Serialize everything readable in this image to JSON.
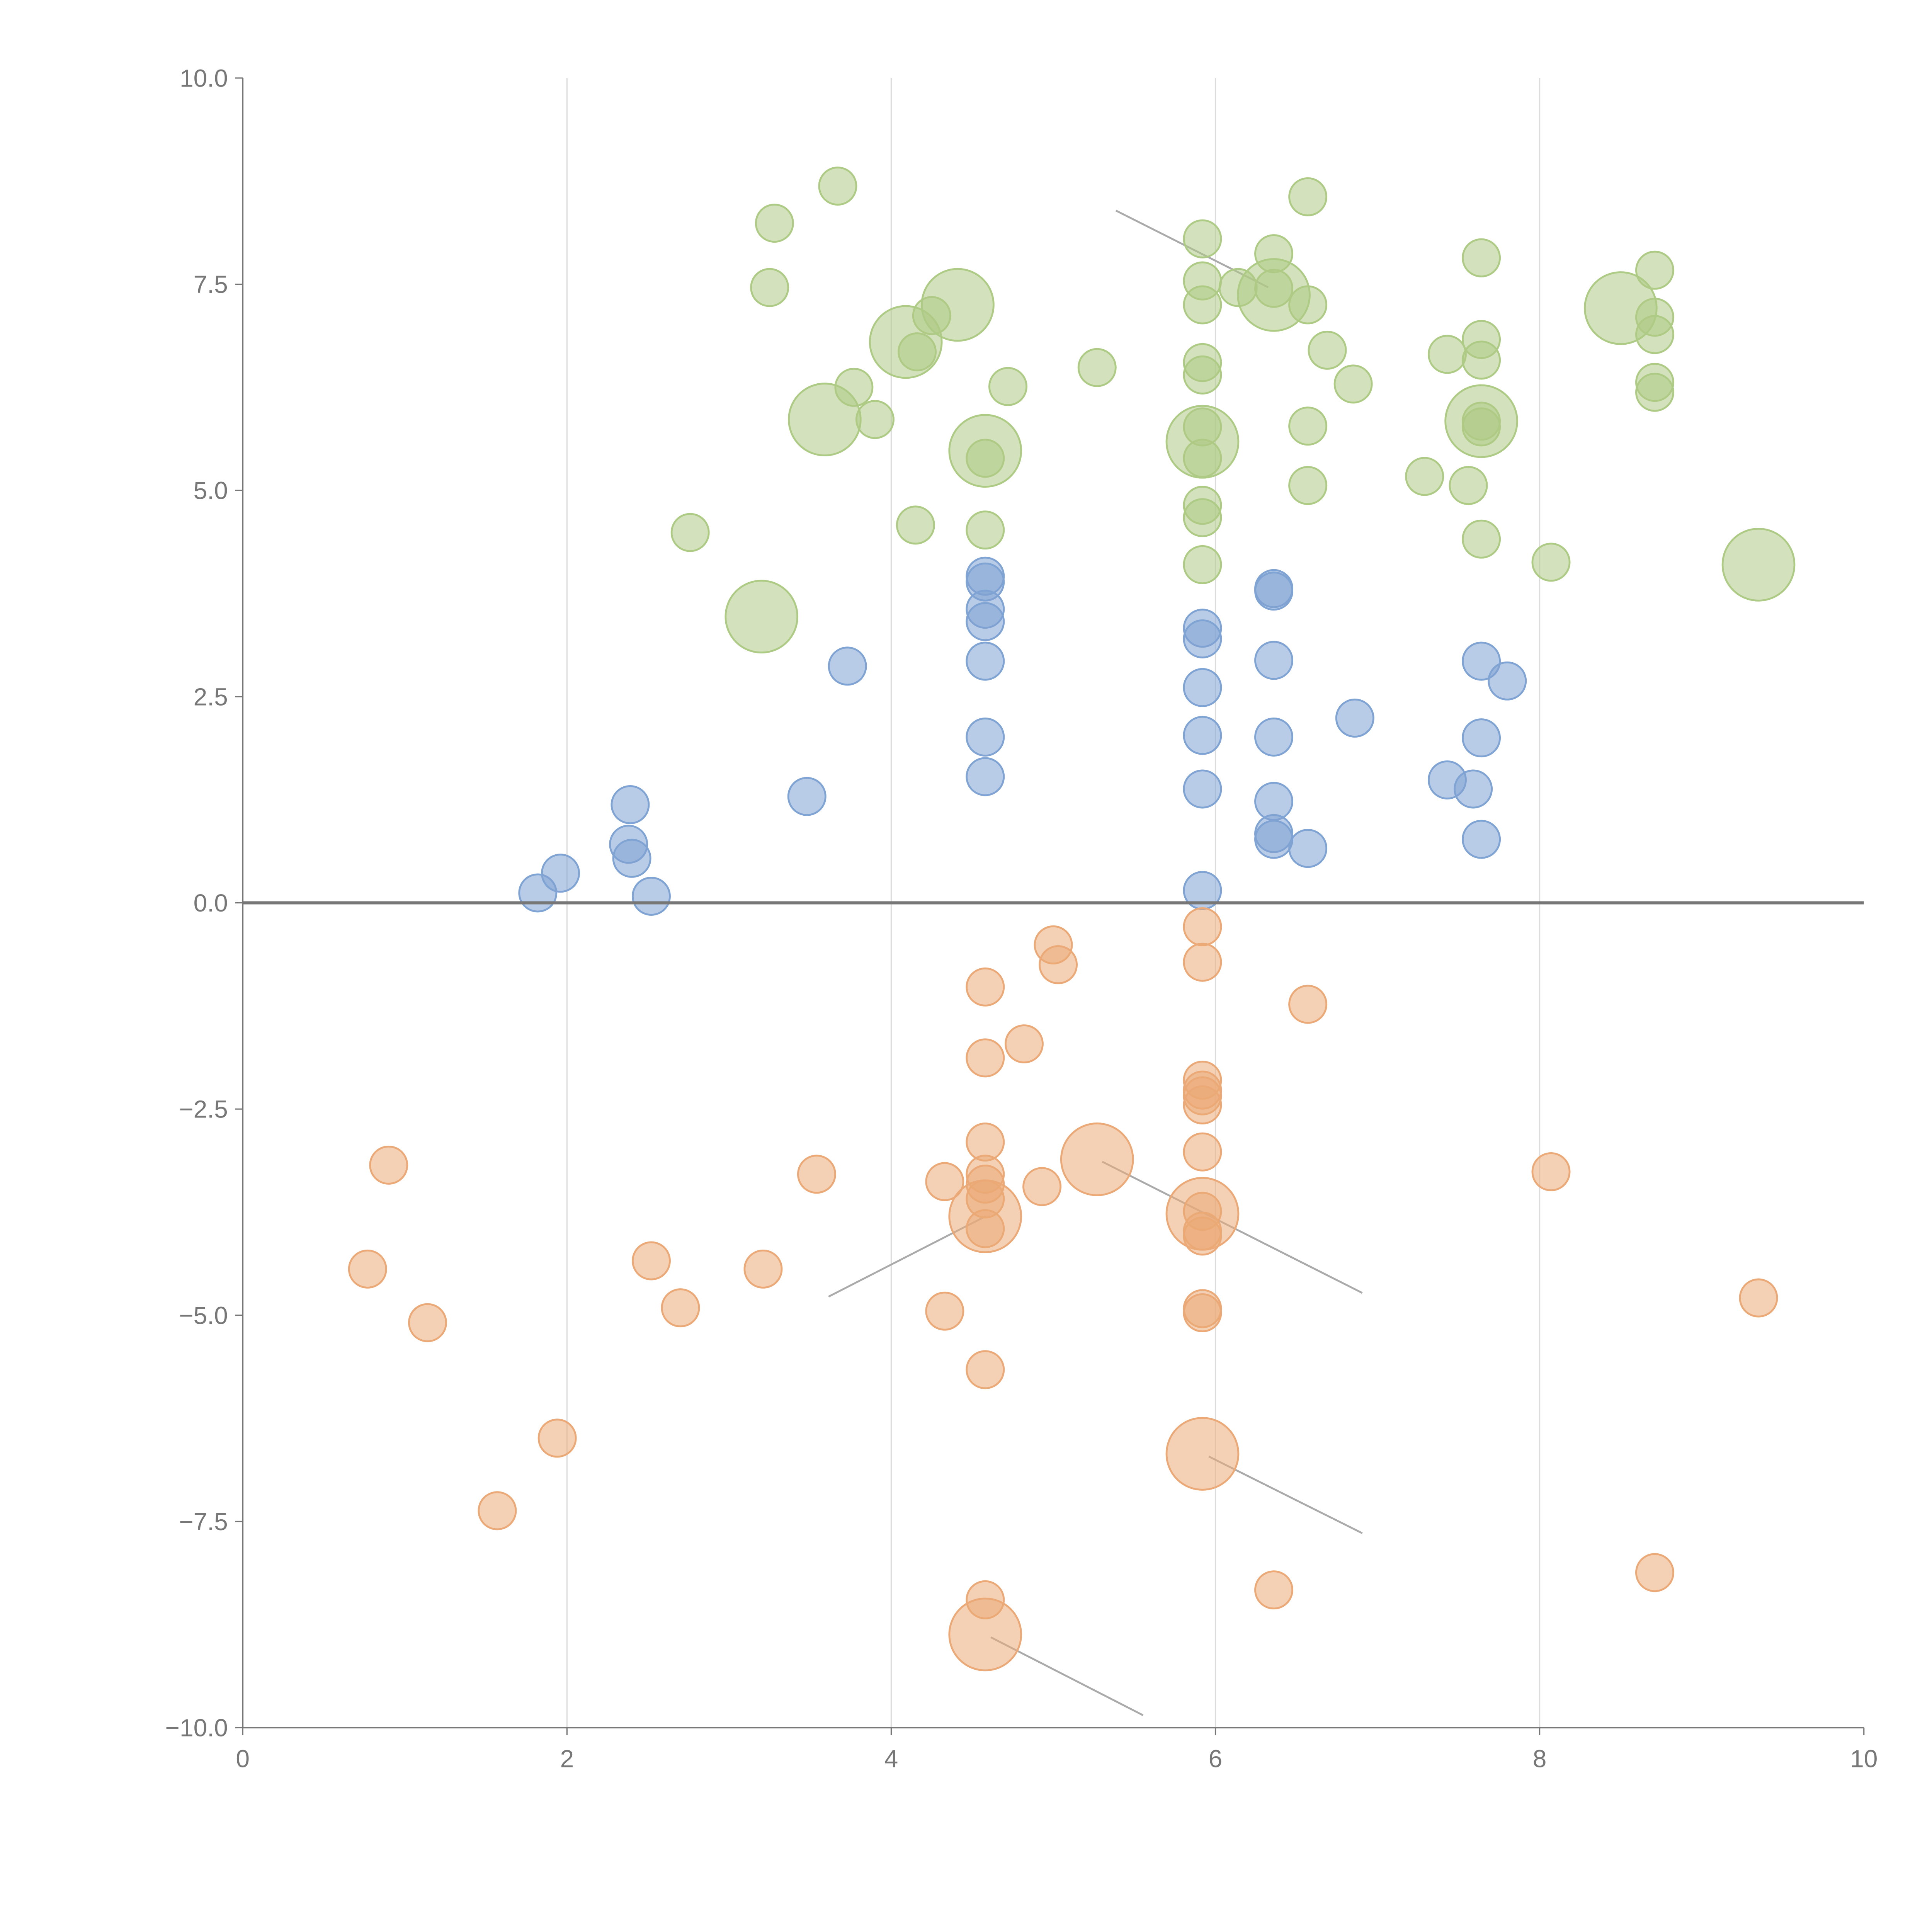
{
  "chart_data": {
    "type": "scatter",
    "title": "",
    "xlabel": "",
    "ylabel": "",
    "xlim": [
      0,
      10
    ],
    "ylim": [
      -10,
      10
    ],
    "grid": "vertical",
    "x_ticks": [
      "0",
      "2",
      "4",
      "6",
      "8",
      "10"
    ],
    "x_tick_values": [
      0,
      2,
      4,
      6,
      8,
      10
    ],
    "y_ticks": [
      "10.0",
      "7.5",
      "5.0",
      "2.5",
      "0.0",
      "−2.5",
      "−5.0",
      "−7.5",
      "−10.0"
    ],
    "y_tick_values": [
      10,
      7.5,
      5,
      2.5,
      0,
      -2.5,
      -5,
      -7.5,
      -10
    ],
    "point_format": "[x, y, size]",
    "series": [
      {
        "name": "blue",
        "color": "#7fa3d3",
        "points": [
          [
            1.82,
            0.12,
            1
          ],
          [
            1.96,
            0.36,
            1
          ],
          [
            2.39,
            1.19,
            1
          ],
          [
            2.38,
            0.71,
            1
          ],
          [
            2.4,
            0.54,
            1
          ],
          [
            2.52,
            0.08,
            1
          ],
          [
            3.48,
            1.29,
            1
          ],
          [
            3.73,
            2.87,
            1
          ],
          [
            4.58,
            3.96,
            1
          ],
          [
            4.58,
            3.89,
            1
          ],
          [
            4.58,
            3.56,
            1
          ],
          [
            4.58,
            3.41,
            1
          ],
          [
            4.58,
            2.93,
            1
          ],
          [
            4.58,
            2.01,
            1
          ],
          [
            4.58,
            1.53,
            1
          ],
          [
            5.92,
            3.33,
            1
          ],
          [
            5.92,
            3.2,
            1
          ],
          [
            5.92,
            2.61,
            1
          ],
          [
            5.92,
            2.03,
            1
          ],
          [
            5.92,
            1.38,
            1
          ],
          [
            5.92,
            0.15,
            1
          ],
          [
            6.36,
            3.81,
            1
          ],
          [
            6.36,
            3.78,
            1
          ],
          [
            6.36,
            2.94,
            1
          ],
          [
            6.36,
            2.01,
            1
          ],
          [
            6.36,
            1.23,
            1
          ],
          [
            6.36,
            0.84,
            1
          ],
          [
            6.36,
            0.77,
            1
          ],
          [
            6.57,
            0.66,
            1
          ],
          [
            6.86,
            2.24,
            1
          ],
          [
            7.43,
            1.49,
            1
          ],
          [
            7.59,
            1.38,
            1
          ],
          [
            7.64,
            2.93,
            1
          ],
          [
            7.8,
            2.69,
            1
          ],
          [
            7.64,
            2.0,
            1
          ],
          [
            7.64,
            0.77,
            1
          ]
        ]
      },
      {
        "name": "green",
        "color": "#aecb85",
        "points": [
          [
            2.76,
            4.49,
            1
          ],
          [
            3.25,
            7.46,
            1
          ],
          [
            3.28,
            8.24,
            1
          ],
          [
            3.67,
            8.69,
            1
          ],
          [
            3.77,
            6.25,
            1
          ],
          [
            3.9,
            5.86,
            1
          ],
          [
            4.15,
            4.58,
            1
          ],
          [
            4.16,
            6.68,
            1
          ],
          [
            4.25,
            7.12,
            1
          ],
          [
            4.58,
            4.52,
            1
          ],
          [
            4.58,
            5.39,
            1
          ],
          [
            4.72,
            6.26,
            1
          ],
          [
            5.27,
            6.49,
            1
          ],
          [
            5.92,
            8.05,
            1
          ],
          [
            5.92,
            7.54,
            1
          ],
          [
            5.92,
            7.25,
            1
          ],
          [
            5.92,
            6.55,
            1
          ],
          [
            5.92,
            6.4,
            1
          ],
          [
            5.92,
            5.77,
            1
          ],
          [
            5.92,
            5.39,
            1
          ],
          [
            5.92,
            4.82,
            1
          ],
          [
            5.92,
            4.67,
            1
          ],
          [
            5.92,
            4.1,
            1
          ],
          [
            6.14,
            7.46,
            1
          ],
          [
            6.36,
            7.87,
            1
          ],
          [
            6.36,
            7.45,
            1
          ],
          [
            6.57,
            8.56,
            1
          ],
          [
            6.57,
            7.25,
            1
          ],
          [
            6.69,
            6.7,
            1
          ],
          [
            6.85,
            6.29,
            1
          ],
          [
            6.57,
            5.78,
            1
          ],
          [
            6.57,
            5.06,
            1
          ],
          [
            7.29,
            5.17,
            1
          ],
          [
            7.43,
            6.65,
            1
          ],
          [
            7.56,
            5.06,
            1
          ],
          [
            7.64,
            7.82,
            1
          ],
          [
            7.64,
            6.83,
            1
          ],
          [
            7.64,
            6.58,
            1
          ],
          [
            7.64,
            5.84,
            1
          ],
          [
            7.64,
            5.77,
            1
          ],
          [
            7.64,
            4.41,
            1
          ],
          [
            8.07,
            4.13,
            1
          ],
          [
            8.71,
            7.67,
            1
          ],
          [
            8.71,
            7.1,
            1
          ],
          [
            8.71,
            6.89,
            1
          ],
          [
            8.71,
            6.31,
            1
          ],
          [
            8.71,
            6.19,
            1
          ],
          [
            3.2,
            3.47,
            4
          ],
          [
            3.59,
            5.86,
            4
          ],
          [
            4.09,
            6.8,
            4
          ],
          [
            4.41,
            7.25,
            4
          ],
          [
            4.58,
            5.48,
            4
          ],
          [
            5.92,
            5.59,
            4
          ],
          [
            6.36,
            7.37,
            4
          ],
          [
            7.64,
            5.84,
            4
          ],
          [
            8.5,
            7.21,
            4
          ],
          [
            9.35,
            4.1,
            4
          ]
        ]
      },
      {
        "name": "orange",
        "color": "#eba977",
        "points": [
          [
            0.9,
            -3.18,
            1
          ],
          [
            0.77,
            -4.44,
            1
          ],
          [
            1.14,
            -5.09,
            1
          ],
          [
            1.57,
            -7.37,
            1
          ],
          [
            1.94,
            -6.49,
            1
          ],
          [
            2.52,
            -4.34,
            1
          ],
          [
            2.7,
            -4.91,
            1
          ],
          [
            3.21,
            -4.44,
            1
          ],
          [
            3.54,
            -3.29,
            1
          ],
          [
            4.33,
            -3.38,
            1
          ],
          [
            4.33,
            -4.95,
            1
          ],
          [
            4.58,
            -1.02,
            1
          ],
          [
            4.58,
            -1.88,
            1
          ],
          [
            4.58,
            -2.9,
            1
          ],
          [
            4.58,
            -3.29,
            1
          ],
          [
            4.58,
            -3.41,
            1
          ],
          [
            4.58,
            -3.59,
            1
          ],
          [
            4.58,
            -3.95,
            1
          ],
          [
            4.58,
            -5.66,
            1
          ],
          [
            4.58,
            -8.45,
            1
          ],
          [
            4.82,
            -1.71,
            1
          ],
          [
            4.93,
            -3.44,
            1
          ],
          [
            5.0,
            -0.51,
            1
          ],
          [
            5.03,
            -0.75,
            1
          ],
          [
            5.92,
            -0.29,
            1
          ],
          [
            5.92,
            -0.72,
            1
          ],
          [
            5.92,
            -2.15,
            1
          ],
          [
            5.92,
            -2.27,
            1
          ],
          [
            5.92,
            -2.34,
            1
          ],
          [
            5.92,
            -2.45,
            1
          ],
          [
            5.92,
            -3.02,
            1
          ],
          [
            5.92,
            -3.74,
            1
          ],
          [
            5.92,
            -3.98,
            1
          ],
          [
            5.92,
            -4.04,
            1
          ],
          [
            5.92,
            -4.92,
            1
          ],
          [
            5.92,
            -4.97,
            1
          ],
          [
            6.36,
            -8.33,
            1
          ],
          [
            6.57,
            -1.23,
            1
          ],
          [
            8.07,
            -3.26,
            1
          ],
          [
            8.71,
            -8.12,
            1
          ],
          [
            9.35,
            -4.79,
            1
          ],
          [
            4.58,
            -3.8,
            4
          ],
          [
            5.27,
            -3.11,
            4
          ],
          [
            5.92,
            -3.77,
            4
          ],
          [
            5.92,
            -6.68,
            4
          ],
          [
            4.58,
            -8.87,
            4
          ]
        ]
      }
    ]
  }
}
